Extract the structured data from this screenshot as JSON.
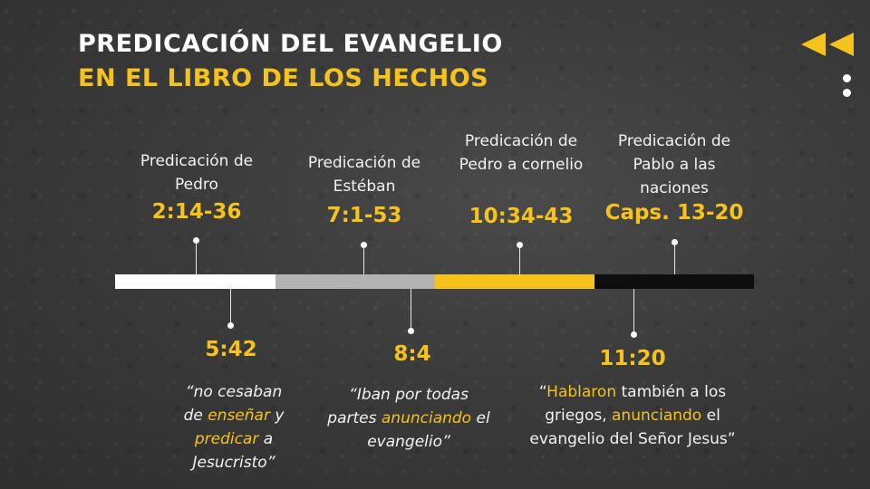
{
  "title": {
    "line1": "PREDICACIÓN DEL EVANGELIO",
    "line2": "EN EL LIBRO DE LOS HECHOS"
  },
  "colors": {
    "accent": "#f6c21c",
    "segments": [
      "#ffffff",
      "#b3b3b3",
      "#f6c21c",
      "#0e0e0e"
    ]
  },
  "icons": {
    "back": "double-left-arrow-icon",
    "menu": "vertical-dots-icon"
  },
  "timeline_top": [
    {
      "label": "Predicación de Pedro",
      "ref": "2:14-36"
    },
    {
      "label": "Predicación de Estéban",
      "ref": "7:1-53"
    },
    {
      "label": "Predicación de Pedro a cornelio",
      "ref": "10:34-43"
    },
    {
      "label": "Predicación de Pablo a las naciones",
      "ref": "Caps. 13-20"
    }
  ],
  "timeline_bottom": [
    {
      "ref": "5:42",
      "quote": [
        {
          "t": "“no cesaban de "
        },
        {
          "t": "enseñar",
          "hl": true
        },
        {
          "t": " y "
        },
        {
          "t": "predicar",
          "hl": true
        },
        {
          "t": " a Jesucristo”"
        }
      ]
    },
    {
      "ref": "8:4",
      "quote": [
        {
          "t": "“Iban por todas partes "
        },
        {
          "t": "anunciando",
          "hl": true
        },
        {
          "t": " el evangelio”"
        }
      ]
    },
    {
      "ref": "11:20",
      "quote": [
        {
          "t": "“"
        },
        {
          "t": "Hablaron",
          "hl": true
        },
        {
          "t": " también a los griegos, "
        },
        {
          "t": "anunciando",
          "hl": true
        },
        {
          "t": " el evangelio del Señor Jesus”"
        }
      ]
    }
  ]
}
